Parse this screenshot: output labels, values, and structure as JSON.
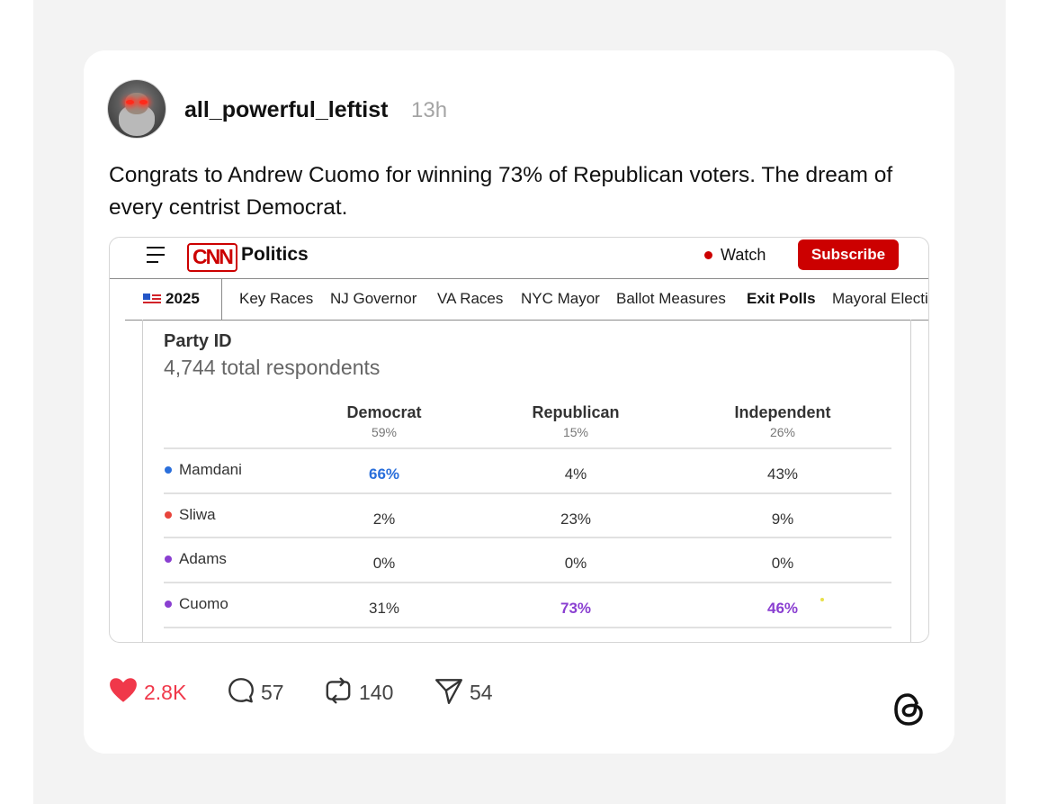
{
  "post": {
    "username": "all_powerful_leftist",
    "time": "13h",
    "text": "Congrats to Andrew Cuomo for winning 73% of Republican voters. The dream of every centrist Democrat."
  },
  "embed": {
    "brand": "CNN",
    "section": "Politics",
    "watch_label": "Watch",
    "subscribe_label": "Subscribe",
    "nav": {
      "year": "2025",
      "items": [
        "Key Races",
        "NJ Governor",
        "VA Races",
        "NYC Mayor",
        "Ballot Measures",
        "Exit Polls",
        "Mayoral Electi"
      ],
      "active": "Exit Polls"
    },
    "table": {
      "title": "Party ID",
      "respondents": "4,744 total respondents",
      "columns": [
        {
          "name": "Democrat",
          "share": "59%"
        },
        {
          "name": "Republican",
          "share": "15%"
        },
        {
          "name": "Independent",
          "share": "26%"
        }
      ],
      "rows": [
        {
          "candidate": "Mamdani",
          "color": "#2a6fdb",
          "values": [
            "66%",
            "4%",
            "43%"
          ]
        },
        {
          "candidate": "Sliwa",
          "color": "#e8453c",
          "values": [
            "2%",
            "23%",
            "9%"
          ]
        },
        {
          "candidate": "Adams",
          "color": "#8a3fd1",
          "values": [
            "0%",
            "0%",
            "0%"
          ]
        },
        {
          "candidate": "Cuomo",
          "color": "#8a3fd1",
          "values": [
            "31%",
            "73%",
            "46%"
          ]
        }
      ]
    }
  },
  "actions": {
    "likes": "2.8K",
    "replies": "57",
    "reposts": "140",
    "shares": "54"
  },
  "colors": {
    "like": "#f0384a",
    "cnn_red": "#cc0000",
    "mamdani_blue": "#2a6fdb",
    "cuomo_purple": "#8a3fd1"
  }
}
